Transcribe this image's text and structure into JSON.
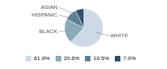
{
  "chart_data": {
    "type": "pie",
    "categories": [
      "WHITE",
      "BLACK",
      "HISPANIC",
      "ASIAN"
    ],
    "values": [
      61.9,
      20.6,
      10.5,
      7.0
    ],
    "value_labels": [
      "61.9%",
      "20.6%",
      "10.5%",
      "7.0%"
    ],
    "colors": [
      "#cdd9e4",
      "#8aaabb",
      "#5a7f96",
      "#2e5069"
    ],
    "legend": "bottom"
  }
}
